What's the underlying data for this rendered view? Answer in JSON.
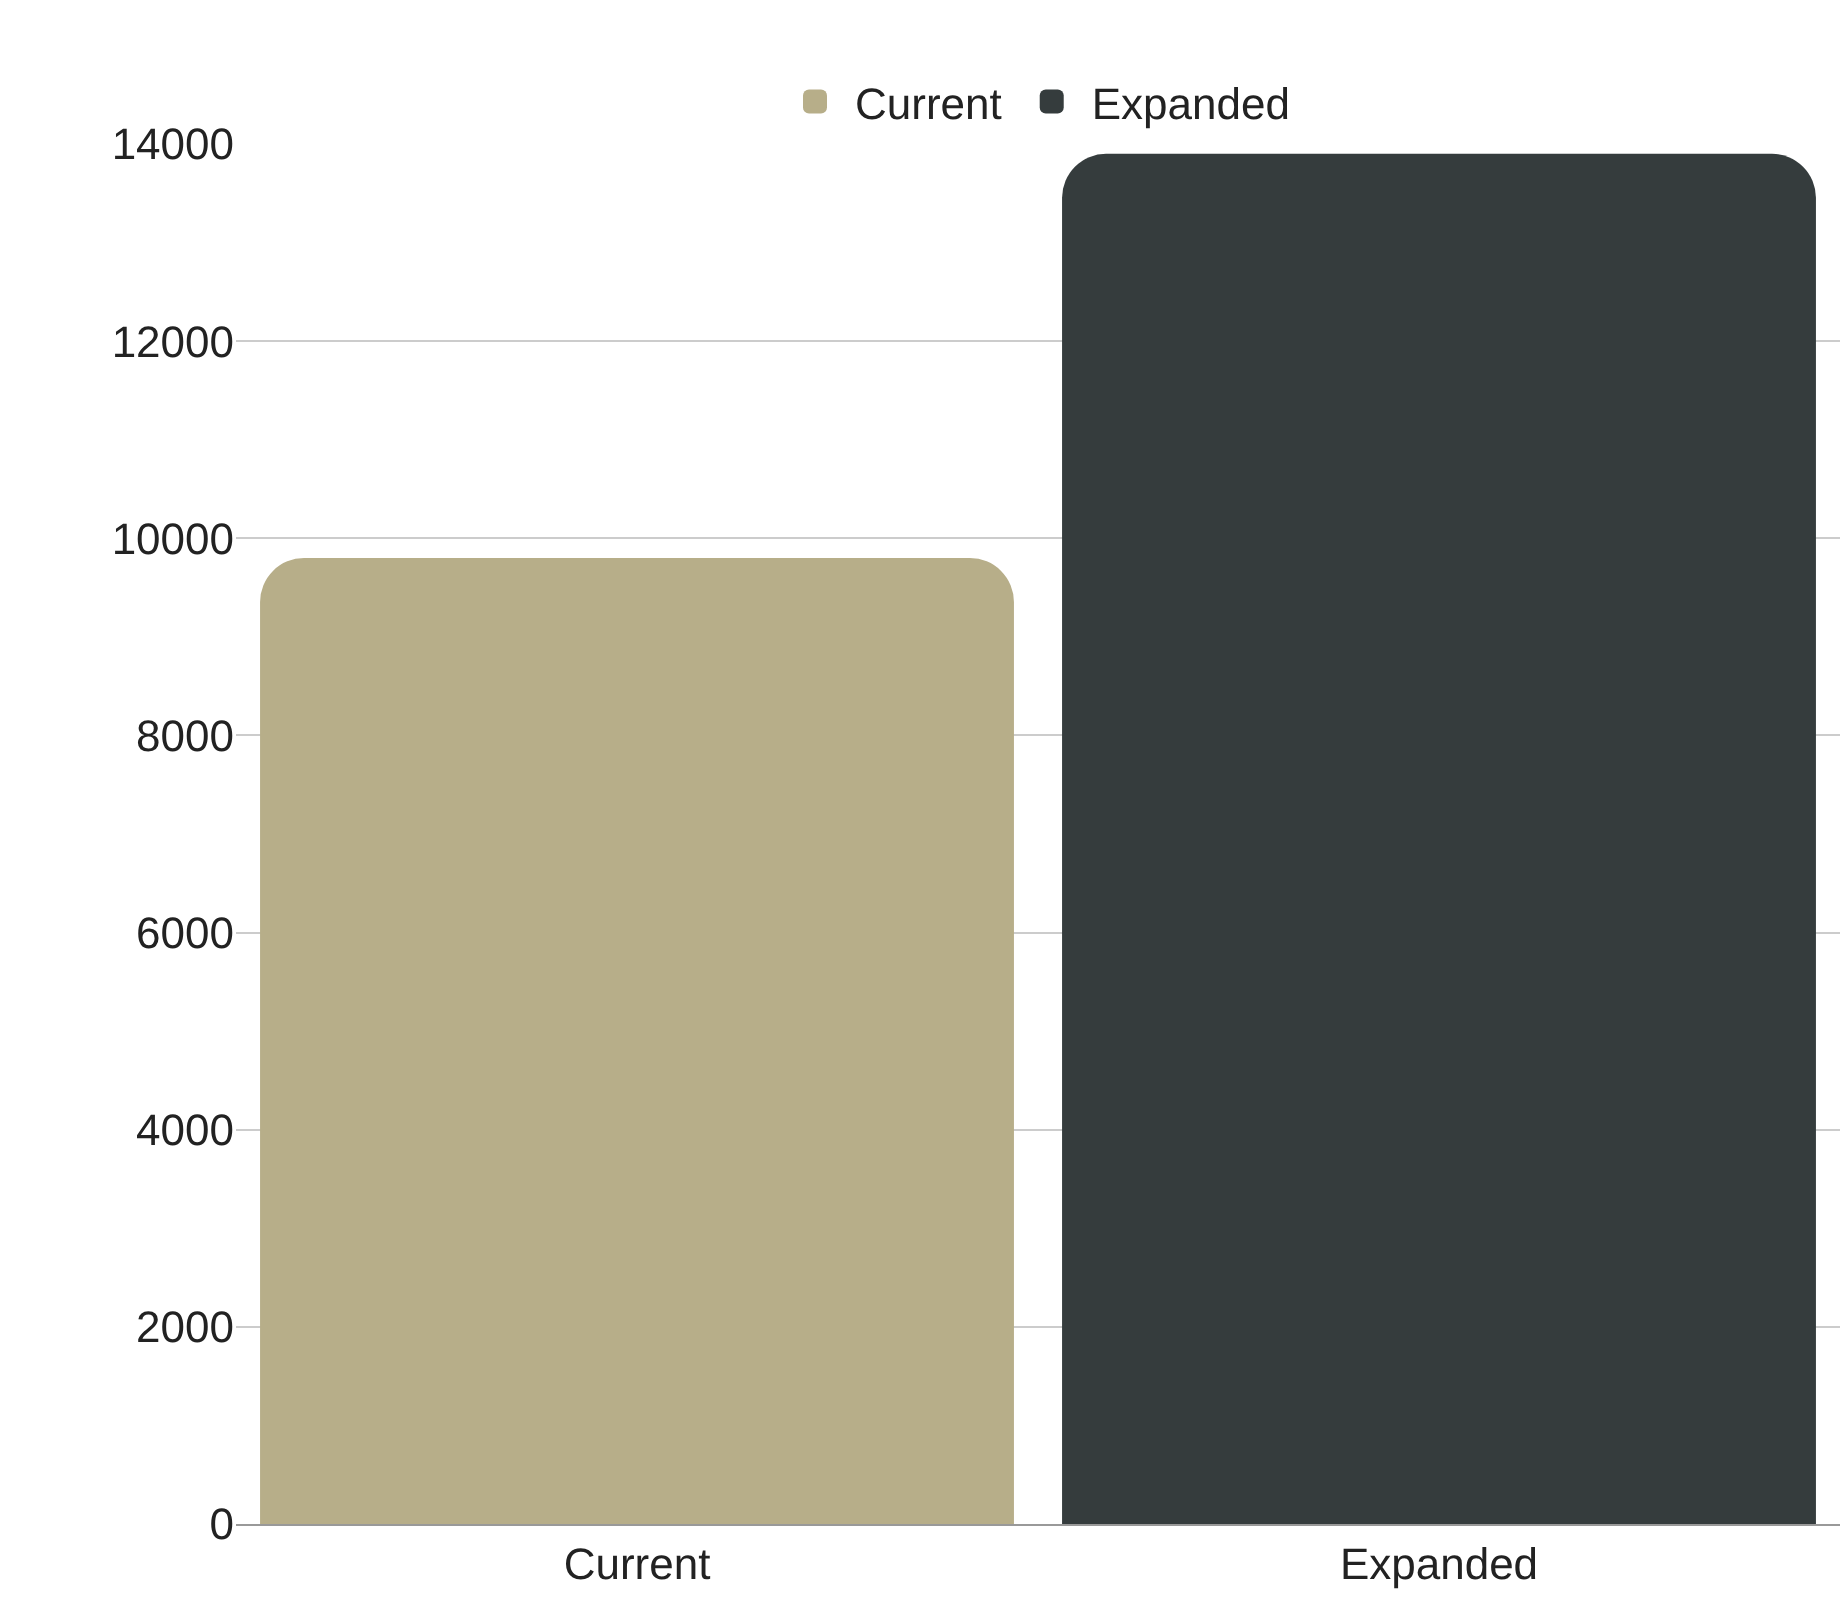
{
  "chart_data": {
    "type": "bar",
    "categories": [
      "Current",
      "Expanded"
    ],
    "series": [
      {
        "name": "Current",
        "color": "#b7ae89",
        "values": [
          9800,
          null
        ]
      },
      {
        "name": "Expanded",
        "color": "#353c3d",
        "values": [
          null,
          13900
        ]
      }
    ],
    "ylim": [
      0,
      14000
    ],
    "yticks": [
      0,
      2000,
      4000,
      6000,
      8000,
      10000,
      12000,
      14000
    ],
    "grid": "y",
    "legend": "top"
  }
}
